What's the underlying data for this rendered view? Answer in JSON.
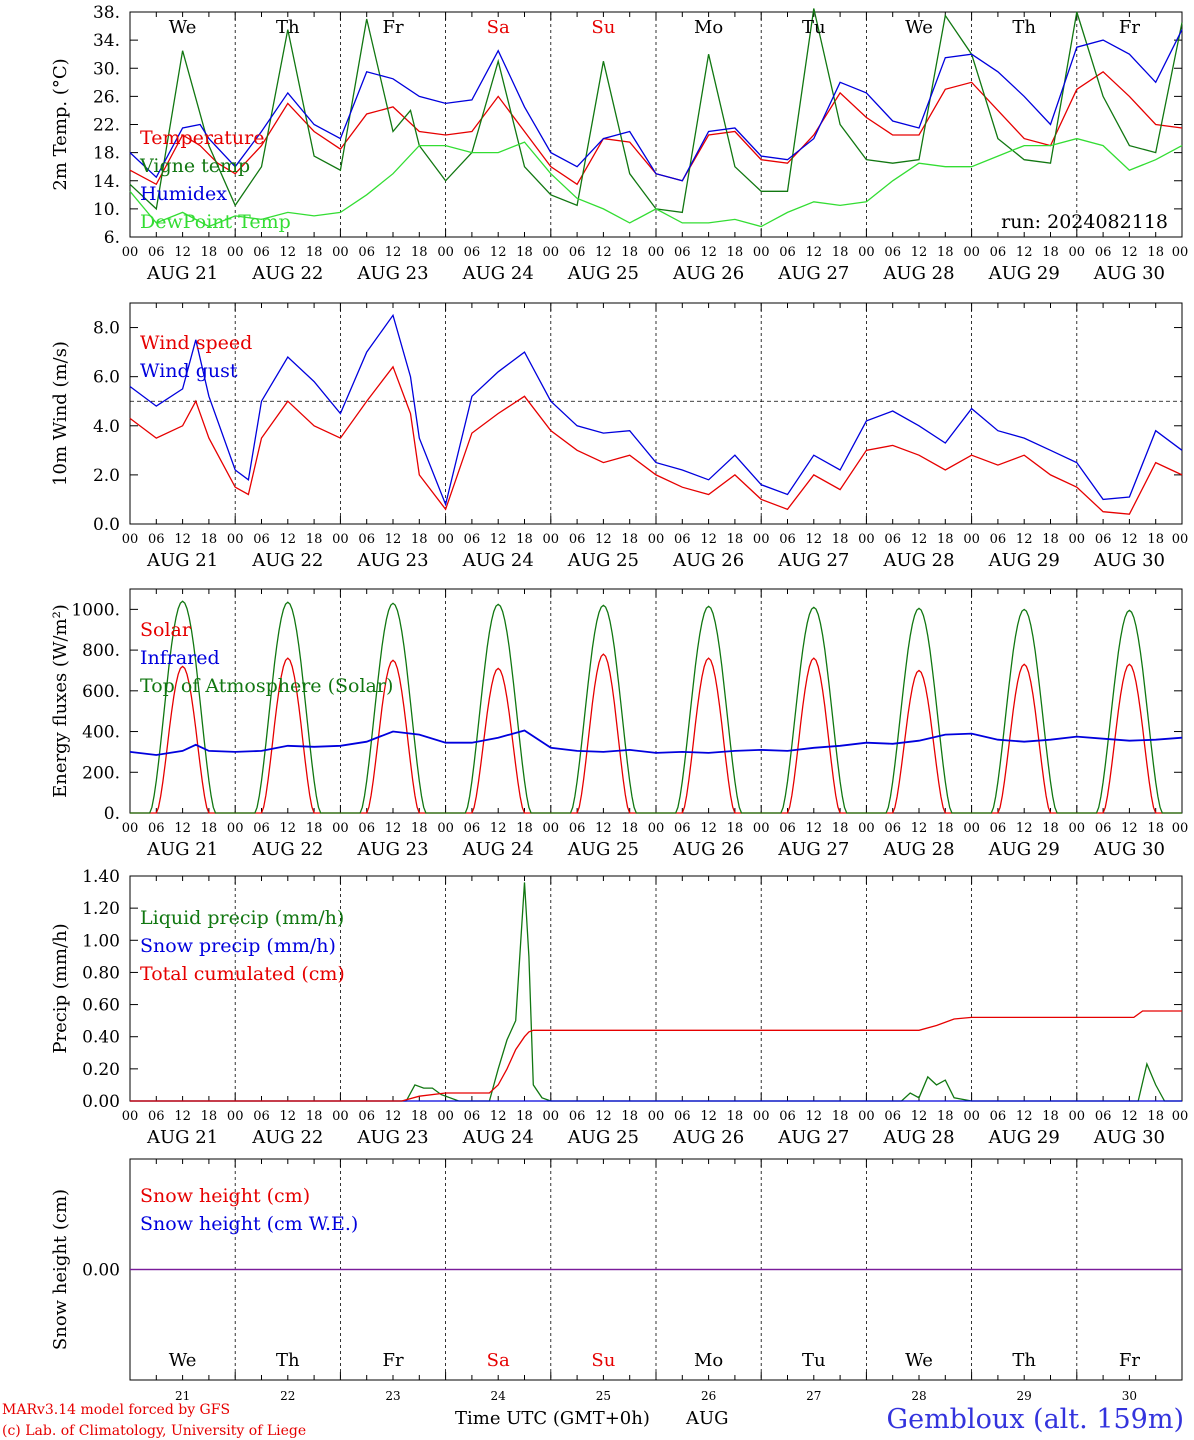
{
  "meta": {
    "run_label": "run: 2024082118",
    "footer_line1": "MARv3.14 model forced by GFS",
    "footer_line2": "(c) Lab. of Climatology, University of Liege",
    "xaxis_title": "Time UTC (GMT+0h)",
    "month_label": "AUG",
    "station": "Gembloux (alt. 159m)"
  },
  "days": {
    "weekday_labels": [
      "We",
      "Th",
      "Fr",
      "Sa",
      "Su",
      "Mo",
      "Tu",
      "We",
      "Th",
      "Fr"
    ],
    "weekday_colors": [
      "#000000",
      "#000000",
      "#000000",
      "#e60000",
      "#e60000",
      "#000000",
      "#000000",
      "#000000",
      "#000000",
      "#000000"
    ],
    "date_labels": [
      "AUG 21",
      "AUG 22",
      "AUG 23",
      "AUG 24",
      "AUG 25",
      "AUG 26",
      "AUG 27",
      "AUG 28",
      "AUG 29",
      "AUG 30"
    ],
    "day_numbers": [
      "21",
      "22",
      "23",
      "24",
      "25",
      "26",
      "27",
      "28",
      "29",
      "30"
    ],
    "hour_ticks": [
      "00",
      "06",
      "12",
      "18"
    ],
    "final_hour": "00"
  },
  "colors": {
    "red": "#e60000",
    "green": "#117711",
    "blue": "#0000dd",
    "lightgreen": "#33dd33",
    "purple": "#7a1c9a",
    "station_blue": "#3333dd"
  },
  "chart_data": [
    {
      "id": "temp",
      "type": "line",
      "ylabel": "2m Temp. (°C)",
      "ylim": [
        6,
        38
      ],
      "yticks": [
        6,
        10,
        14,
        18,
        22,
        26,
        30,
        34,
        38
      ],
      "ytick_labels": [
        "6.",
        "10.",
        "14.",
        "18.",
        "22.",
        "26.",
        "30.",
        "34.",
        "38."
      ],
      "xunit": "hours since AUG 21 00 UTC",
      "grid": "vertical dotted at midnight",
      "legend_placement": "left",
      "series": [
        {
          "name": "Temperature",
          "color": "red",
          "x": [
            0,
            6,
            12,
            16,
            20,
            24,
            30,
            36,
            42,
            48,
            54,
            60,
            66,
            72,
            78,
            84,
            90,
            96,
            102,
            108,
            114,
            120,
            126,
            132,
            138,
            144,
            150,
            156,
            162,
            168,
            174,
            180,
            186,
            192,
            198,
            204,
            210,
            216,
            222,
            228,
            234,
            240
          ],
          "y": [
            15.5,
            13.5,
            20.5,
            19,
            16.5,
            15,
            19,
            25,
            21,
            18.5,
            23.5,
            24.5,
            21,
            20.5,
            21,
            26,
            21,
            16,
            13.5,
            20,
            19.5,
            15,
            14,
            20.5,
            21,
            17,
            16.5,
            20.5,
            26.5,
            23,
            20.5,
            20.5,
            27,
            28,
            24,
            20,
            19,
            27,
            29.5,
            26,
            22,
            21.5
          ]
        },
        {
          "name": "Vigne temp",
          "color": "green",
          "x": [
            0,
            6,
            12,
            18,
            24,
            30,
            36,
            42,
            48,
            54,
            60,
            64,
            66,
            72,
            78,
            84,
            90,
            96,
            102,
            108,
            114,
            120,
            126,
            132,
            138,
            144,
            150,
            156,
            162,
            168,
            174,
            180,
            186,
            192,
            198,
            204,
            210,
            216,
            222,
            228,
            234,
            240
          ],
          "y": [
            13.5,
            10,
            32.5,
            19,
            10.5,
            16,
            35.5,
            17.5,
            15.5,
            37,
            21,
            24,
            19,
            14,
            18,
            31,
            16,
            12,
            10.5,
            31,
            15,
            10,
            9.5,
            32,
            16,
            12.5,
            12.5,
            38.5,
            22,
            17,
            16.5,
            17,
            37.5,
            32,
            20,
            17,
            16.5,
            38,
            26,
            19,
            18,
            36.5
          ]
        },
        {
          "name": "Humidex",
          "color": "blue",
          "x": [
            0,
            6,
            12,
            16,
            18,
            24,
            30,
            36,
            42,
            48,
            54,
            60,
            66,
            72,
            78,
            84,
            90,
            96,
            102,
            108,
            114,
            120,
            126,
            132,
            138,
            144,
            150,
            156,
            162,
            168,
            174,
            180,
            186,
            192,
            198,
            204,
            210,
            216,
            222,
            228,
            234,
            240
          ],
          "y": [
            18,
            14.5,
            21.5,
            22,
            20,
            16,
            21,
            26.5,
            22,
            20,
            29.5,
            28.5,
            26,
            25,
            25.5,
            32.5,
            24.5,
            18,
            16,
            20,
            21,
            15,
            14,
            21,
            21.5,
            17.5,
            17,
            20,
            28,
            26.5,
            22.5,
            21.5,
            31.5,
            32,
            29.5,
            26,
            22,
            33,
            34,
            32,
            28,
            35.5
          ]
        },
        {
          "name": "DewPoint Temp",
          "color": "lightgreen",
          "x": [
            0,
            6,
            12,
            18,
            24,
            30,
            36,
            42,
            48,
            54,
            60,
            66,
            72,
            78,
            84,
            90,
            96,
            102,
            108,
            114,
            120,
            126,
            132,
            138,
            144,
            150,
            156,
            162,
            168,
            174,
            180,
            186,
            192,
            198,
            204,
            210,
            216,
            222,
            228,
            234,
            240
          ],
          "y": [
            12.5,
            8,
            9.5,
            7.5,
            9,
            8.5,
            9.5,
            9,
            9.5,
            12,
            15,
            19,
            19,
            18,
            18,
            19.5,
            15,
            11.5,
            10,
            8,
            10,
            8,
            8,
            8.5,
            7.5,
            9.5,
            11,
            10.5,
            11,
            14,
            16.5,
            16,
            16,
            17.5,
            19,
            19,
            20,
            19,
            15.5,
            17,
            19
          ]
        }
      ]
    },
    {
      "id": "wind",
      "type": "line",
      "ylabel": "10m Wind (m/s)",
      "ylim": [
        0,
        9
      ],
      "yticks": [
        0,
        2,
        4,
        6,
        8
      ],
      "ytick_labels": [
        "0.0",
        "2.0",
        "4.0",
        "6.0",
        "8.0"
      ],
      "reference_line": 5.0,
      "legend_placement": "left",
      "series": [
        {
          "name": "Wind speed",
          "color": "red",
          "x": [
            0,
            6,
            12,
            15,
            18,
            24,
            27,
            30,
            36,
            42,
            48,
            54,
            60,
            64,
            66,
            72,
            78,
            84,
            90,
            96,
            102,
            108,
            114,
            120,
            126,
            132,
            138,
            144,
            150,
            156,
            162,
            168,
            174,
            180,
            186,
            192,
            198,
            204,
            210,
            216,
            222,
            228,
            234,
            240
          ],
          "y": [
            4.3,
            3.5,
            4,
            5,
            3.5,
            1.5,
            1.2,
            3.5,
            5,
            4,
            3.5,
            5,
            6.4,
            4.5,
            2,
            0.6,
            3.7,
            4.5,
            5.2,
            3.8,
            3,
            2.5,
            2.8,
            2,
            1.5,
            1.2,
            2,
            1,
            0.6,
            2,
            1.4,
            3,
            3.2,
            2.8,
            2.2,
            2.8,
            2.4,
            2.8,
            2,
            1.5,
            0.5,
            0.4,
            2.5,
            2
          ]
        },
        {
          "name": "Wind gust",
          "color": "blue",
          "x": [
            0,
            6,
            12,
            15,
            18,
            24,
            27,
            30,
            36,
            42,
            48,
            54,
            60,
            64,
            66,
            72,
            78,
            84,
            90,
            96,
            102,
            108,
            114,
            120,
            126,
            132,
            138,
            144,
            150,
            156,
            162,
            168,
            174,
            180,
            186,
            192,
            198,
            204,
            210,
            216,
            222,
            228,
            234,
            240
          ],
          "y": [
            5.6,
            4.8,
            5.5,
            7.5,
            5.2,
            2.2,
            1.8,
            5,
            6.8,
            5.8,
            4.5,
            7,
            8.5,
            6,
            3.5,
            0.8,
            5.2,
            6.2,
            7,
            5,
            4,
            3.7,
            3.8,
            2.5,
            2.2,
            1.8,
            2.8,
            1.6,
            1.2,
            2.8,
            2.2,
            4.2,
            4.6,
            4,
            3.3,
            4.7,
            3.8,
            3.5,
            3,
            2.5,
            1,
            1.1,
            3.8,
            3
          ]
        }
      ]
    },
    {
      "id": "flux",
      "type": "line",
      "ylabel": "Energy fluxes (W/m²)",
      "ylim": [
        0,
        1100
      ],
      "yticks": [
        0,
        200,
        400,
        600,
        800,
        1000
      ],
      "ytick_labels": [
        "0.",
        "200.",
        "400.",
        "600.",
        "800.",
        "1000."
      ],
      "legend_placement": "left",
      "series_daily": [
        {
          "name": "Solar",
          "color": "red",
          "peaks": [
            720,
            760,
            750,
            710,
            780,
            760,
            760,
            700,
            730,
            730
          ]
        },
        {
          "name": "Top of Atmosphere (Solar)",
          "color": "green",
          "peaks": [
            1040,
            1035,
            1030,
            1025,
            1020,
            1015,
            1010,
            1005,
            1000,
            995
          ]
        }
      ],
      "series": [
        {
          "name": "Infrared",
          "color": "blue",
          "x": [
            0,
            6,
            12,
            15,
            18,
            24,
            30,
            36,
            42,
            48,
            54,
            60,
            66,
            72,
            78,
            84,
            90,
            96,
            102,
            108,
            114,
            120,
            126,
            132,
            138,
            144,
            150,
            156,
            162,
            168,
            174,
            180,
            186,
            192,
            198,
            204,
            210,
            216,
            222,
            228,
            234,
            240
          ],
          "y": [
            300,
            285,
            305,
            335,
            305,
            300,
            305,
            330,
            325,
            330,
            350,
            400,
            385,
            345,
            345,
            370,
            405,
            320,
            305,
            300,
            310,
            295,
            300,
            295,
            305,
            310,
            305,
            320,
            330,
            345,
            340,
            355,
            385,
            390,
            360,
            350,
            360,
            375,
            365,
            355,
            360,
            370
          ]
        }
      ]
    },
    {
      "id": "precip",
      "type": "line",
      "ylabel": "Precip (mm/h)",
      "ylim": [
        0,
        1.4
      ],
      "yticks": [
        0,
        0.2,
        0.4,
        0.6,
        0.8,
        1.0,
        1.2,
        1.4
      ],
      "ytick_labels": [
        "0.00",
        "0.20",
        "0.40",
        "0.60",
        "0.80",
        "1.00",
        "1.20",
        "1.40"
      ],
      "legend_placement": "left",
      "series": [
        {
          "name": "Liquid precip (mm/h)",
          "color": "green",
          "x": [
            0,
            63,
            65,
            67,
            69,
            71,
            75,
            82,
            84,
            86,
            88,
            90,
            91,
            92,
            94,
            96,
            176,
            178,
            180,
            182,
            184,
            186,
            188,
            192,
            230,
            232,
            234,
            236,
            240
          ],
          "y": [
            0,
            0,
            0.1,
            0.08,
            0.08,
            0.04,
            0,
            0,
            0.2,
            0.38,
            0.5,
            1.36,
            0.9,
            0.1,
            0.02,
            0,
            0,
            0.05,
            0.02,
            0.15,
            0.1,
            0.13,
            0.02,
            0,
            0,
            0.23,
            0.1,
            0,
            0
          ]
        },
        {
          "name": "Snow precip (mm/h)",
          "color": "blue",
          "x": [
            0,
            240
          ],
          "y": [
            0,
            0
          ]
        },
        {
          "name": "Total cumulated (cm)",
          "color": "red",
          "x": [
            0,
            62,
            66,
            72,
            82,
            84,
            86,
            88,
            90,
            91,
            92,
            144,
            180,
            184,
            188,
            192,
            229,
            231,
            240
          ],
          "y": [
            0,
            0,
            0.03,
            0.05,
            0.05,
            0.1,
            0.2,
            0.32,
            0.4,
            0.43,
            0.44,
            0.44,
            0.44,
            0.47,
            0.51,
            0.52,
            0.52,
            0.56,
            0.56
          ]
        }
      ]
    },
    {
      "id": "snow",
      "type": "line",
      "ylabel": "Snow height (cm)",
      "ytick_labels": [
        "0.00"
      ],
      "legend_placement": "left",
      "series": [
        {
          "name": "Snow height (cm)",
          "color": "red",
          "x": [
            0,
            240
          ],
          "y": [
            0,
            0
          ]
        },
        {
          "name": "Snow height (cm W.E.)",
          "color": "blue",
          "x": [
            0,
            240
          ],
          "y": [
            0,
            0
          ]
        }
      ]
    }
  ]
}
